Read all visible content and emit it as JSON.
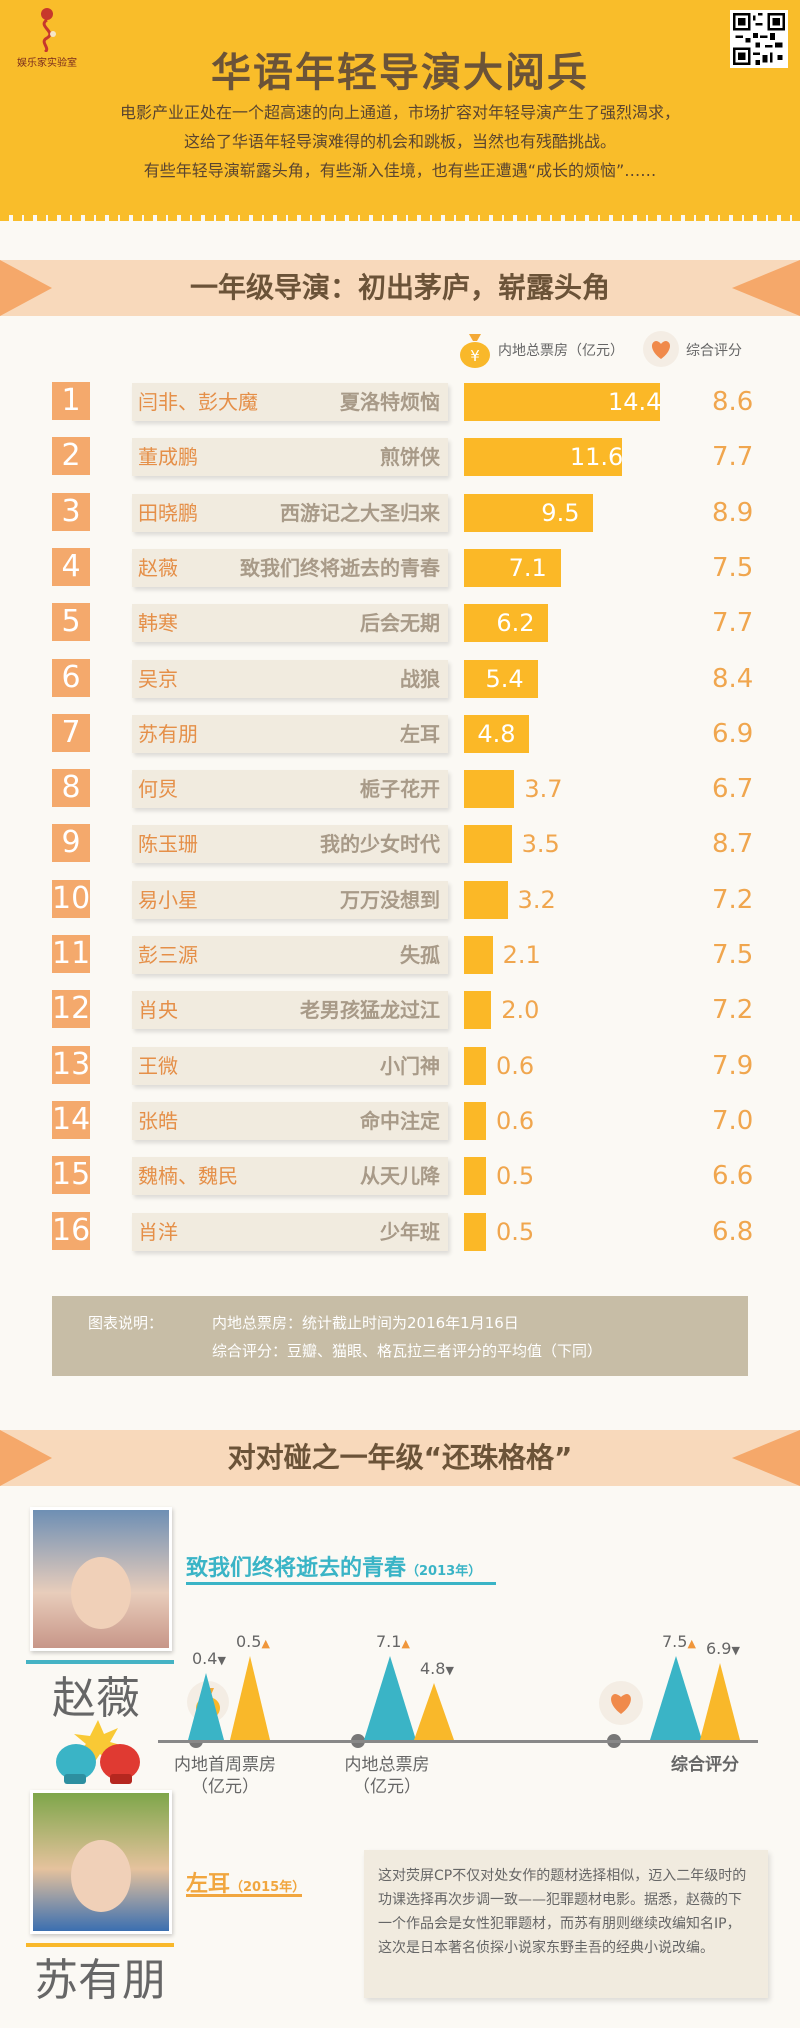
{
  "header": {
    "logo_text": "娱乐家实验室",
    "title": "华语年轻导演大阅兵",
    "intro": [
      "电影产业正处在一个超高速的向上通道，市场扩容对年轻导演产生了强烈渴求，",
      "这给了华语年轻导演难得的机会和跳板，当然也有残酷挑战。",
      "有些年轻导演崭露头角，有些渐入佳境，也有些正遭遇“成长的烦恼”……"
    ]
  },
  "section1": {
    "title": "一年级导演：初出茅庐，崭露头角",
    "legend_box": "内地总票房（亿元）",
    "legend_score": "综合评分"
  },
  "rankings": [
    {
      "rank": "1",
      "director": "闫非、彭大魔",
      "film": "夏洛特烦恼",
      "box": 14.4,
      "box_label": "14.4",
      "score": "8.6"
    },
    {
      "rank": "2",
      "director": "董成鹏",
      "film": "煎饼侠",
      "box": 11.6,
      "box_label": "11.6",
      "score": "7.7"
    },
    {
      "rank": "3",
      "director": "田晓鹏",
      "film": "西游记之大圣归来",
      "box": 9.5,
      "box_label": "9.5",
      "score": "8.9"
    },
    {
      "rank": "4",
      "director": "赵薇",
      "film": "致我们终将逝去的青春",
      "box": 7.1,
      "box_label": "7.1",
      "score": "7.5"
    },
    {
      "rank": "5",
      "director": "韩寒",
      "film": "后会无期",
      "box": 6.2,
      "box_label": "6.2",
      "score": "7.7"
    },
    {
      "rank": "6",
      "director": "吴京",
      "film": "战狼",
      "box": 5.4,
      "box_label": "5.4",
      "score": "8.4"
    },
    {
      "rank": "7",
      "director": "苏有朋",
      "film": "左耳",
      "box": 4.8,
      "box_label": "4.8",
      "score": "6.9"
    },
    {
      "rank": "8",
      "director": "何炅",
      "film": "栀子花开",
      "box": 3.7,
      "box_label": "3.7",
      "score": "6.7"
    },
    {
      "rank": "9",
      "director": "陈玉珊",
      "film": "我的少女时代",
      "box": 3.5,
      "box_label": "3.5",
      "score": "8.7"
    },
    {
      "rank": "10",
      "director": "易小星",
      "film": "万万没想到",
      "box": 3.2,
      "box_label": "3.2",
      "score": "7.2"
    },
    {
      "rank": "11",
      "director": "彭三源",
      "film": "失孤",
      "box": 2.1,
      "box_label": "2.1",
      "score": "7.5"
    },
    {
      "rank": "12",
      "director": "肖央",
      "film": "老男孩猛龙过江",
      "box": 2.0,
      "box_label": "2.0",
      "score": "7.2"
    },
    {
      "rank": "13",
      "director": "王微",
      "film": "小门神",
      "box": 0.6,
      "box_label": "0.6",
      "score": "7.9"
    },
    {
      "rank": "14",
      "director": "张皓",
      "film": "命中注定",
      "box": 0.6,
      "box_label": "0.6",
      "score": "7.0"
    },
    {
      "rank": "15",
      "director": "魏楠、魏民",
      "film": "从天儿降",
      "box": 0.5,
      "box_label": "0.5",
      "score": "6.6"
    },
    {
      "rank": "16",
      "director": "肖洋",
      "film": "少年班",
      "box": 0.5,
      "box_label": "0.5",
      "score": "6.8"
    }
  ],
  "note": {
    "label": "图表说明：",
    "line1": "内地总票房：统计截止时间为2016年1月16日",
    "line2": "综合评分：豆瓣、猫眼、格瓦拉三者评分的平均值（下同）"
  },
  "section2": {
    "title": "对对碰之一年级“还珠格格”"
  },
  "compare": {
    "person1": {
      "name": "赵薇",
      "film": "致我们终将逝去的青春",
      "year": "（2013年）"
    },
    "person2": {
      "name": "苏有朋",
      "film": "左耳",
      "year": "（2015年）"
    },
    "colors": {
      "person1": "#3ab4c6",
      "person2": "#f9b82a"
    },
    "groups": [
      {
        "label1": "内地首周票房",
        "label2": "（亿元）",
        "v1": 0.4,
        "v1_label": "0.4",
        "v1_mark": "▼",
        "v2": 0.5,
        "v2_label": "0.5",
        "v2_mark": "▲"
      },
      {
        "label1": "内地总票房",
        "label2": "（亿元）",
        "v1": 7.1,
        "v1_label": "7.1",
        "v1_mark": "▲",
        "v2": 4.8,
        "v2_label": "4.8",
        "v2_mark": "▼"
      },
      {
        "label1": "综合评分",
        "label2": "",
        "v1": 7.5,
        "v1_label": "7.5",
        "v1_mark": "▲",
        "v2": 6.9,
        "v2_label": "6.9",
        "v2_mark": "▼"
      }
    ],
    "description": "这对荧屏CP不仅对处女作的题材选择相似，迈入二年级时的功课选择再次步调一致——犯罪题材电影。据悉，赵薇的下一个作品会是女性犯罪题材，而苏有朋则继续改编知名IP，这次是日本著名侦探小说家东野圭吾的经典小说改编。"
  }
}
